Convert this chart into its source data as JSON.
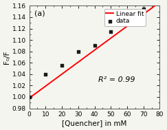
{
  "title": "(a)",
  "xlabel": "[Quencher] in mM",
  "ylabel": "F₀/F",
  "xlim": [
    0,
    80
  ],
  "ylim": [
    0.98,
    1.16
  ],
  "xticks": [
    0,
    10,
    20,
    30,
    40,
    50,
    60,
    70,
    80
  ],
  "yticks": [
    0.98,
    1.0,
    1.02,
    1.04,
    1.06,
    1.08,
    1.1,
    1.12,
    1.14,
    1.16
  ],
  "data_x": [
    0,
    10,
    20,
    30,
    40,
    50,
    60,
    70
  ],
  "data_y": [
    1.0,
    1.04,
    1.055,
    1.079,
    1.09,
    1.115,
    1.138,
    1.154
  ],
  "fit_x": [
    0,
    78
  ],
  "fit_y": [
    0.998,
    1.162
  ],
  "r_squared": "R² = 0.99",
  "data_color": "#1a1a1a",
  "fit_color": "#ff0000",
  "marker": "s",
  "marker_size": 3.5,
  "legend_data": "data",
  "legend_fit": "Linear fit",
  "background_color": "#f5f5f0",
  "title_fontsize": 8,
  "label_fontsize": 7.5,
  "tick_fontsize": 6.5,
  "annotation_fontsize": 8,
  "legend_fontsize": 6.5
}
